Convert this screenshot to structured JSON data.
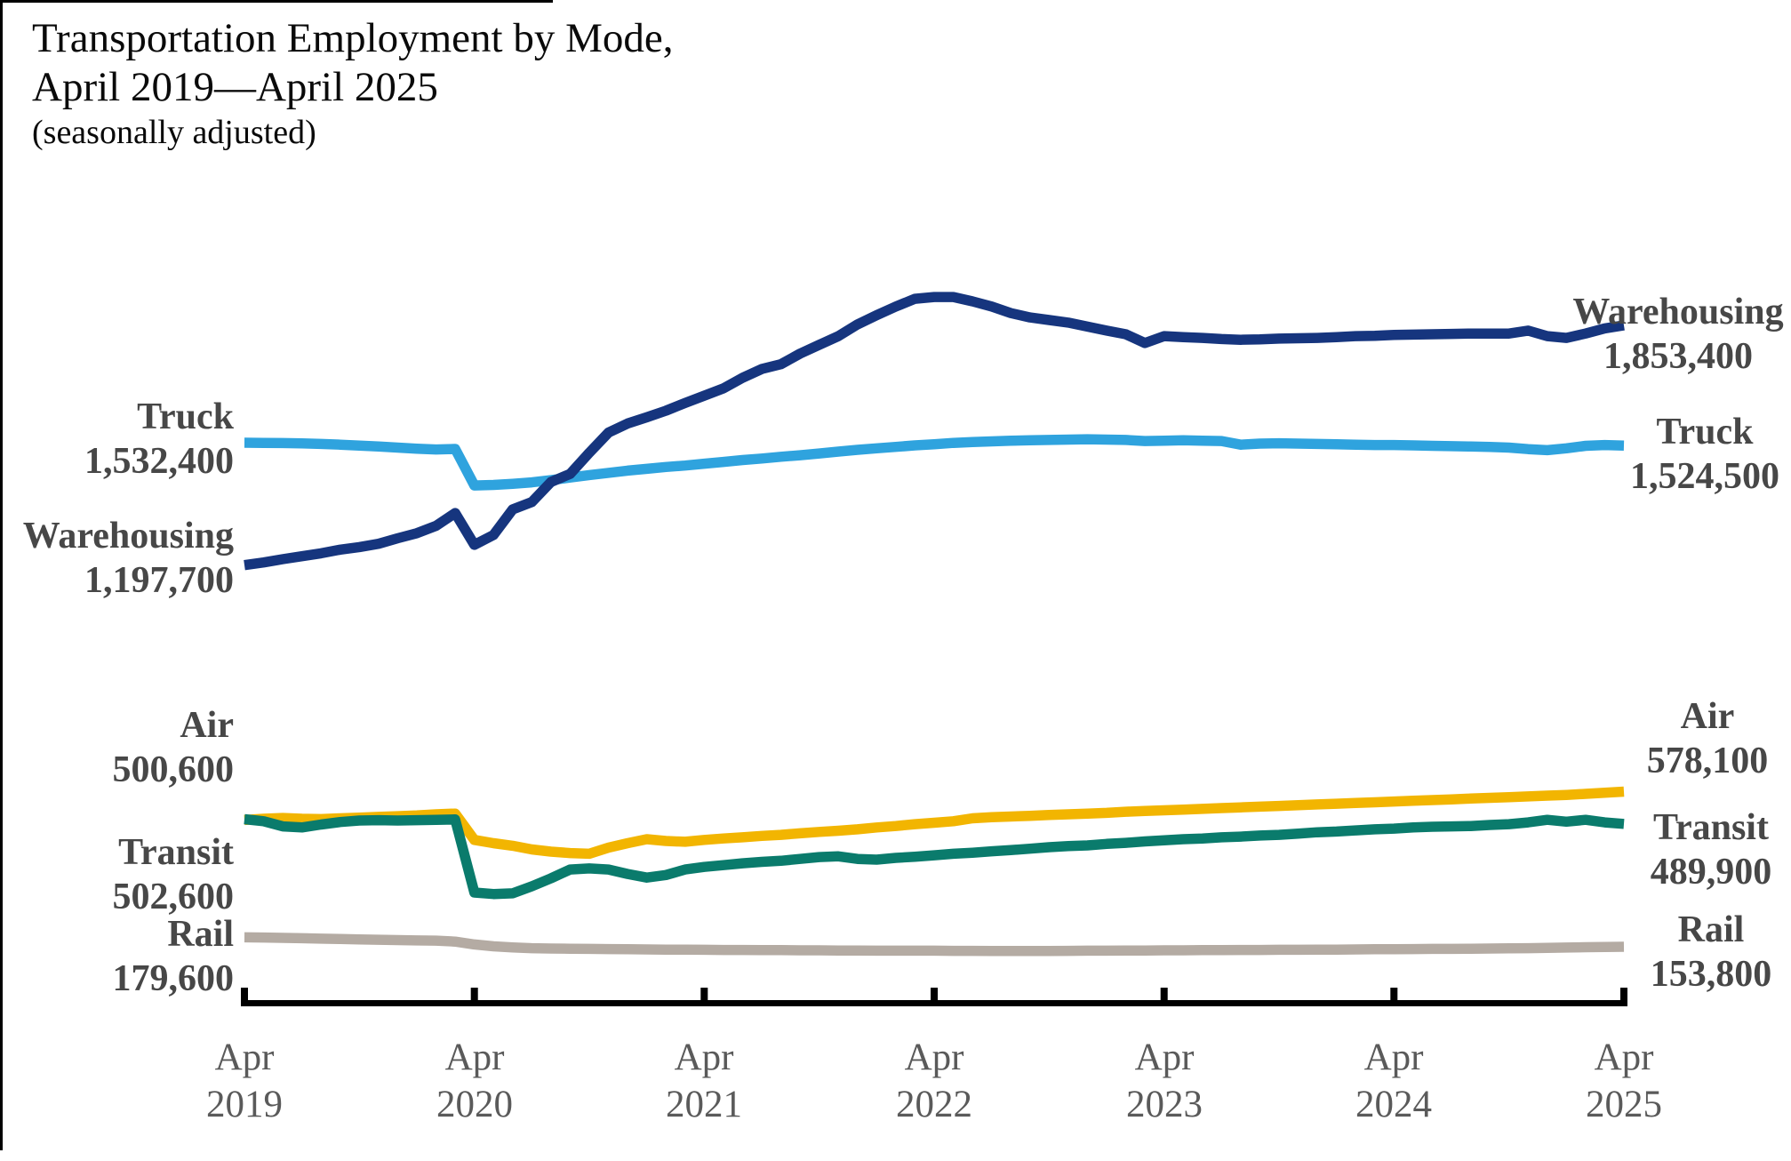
{
  "title": {
    "line1": "Transportation Employment by Mode,",
    "line2": "April 2019—April 2025",
    "line3": "(seasonally adjusted)"
  },
  "colors": {
    "warehousing": "#16357E",
    "truck": "#2FA3DE",
    "air": "#F2B501",
    "transit": "#0A7B6C",
    "rail": "#B4ABA3",
    "axis": "#000000",
    "series_label_text": "#474747",
    "tick_label_text": "#5a5a5a"
  },
  "chart_data": {
    "type": "line",
    "title": "Transportation Employment by Mode, April 2019—April 2025 (seasonally adjusted)",
    "x_unit": "month",
    "x_range": [
      "Apr 2019",
      "Apr 2025"
    ],
    "grid": false,
    "y_axis_visible": false,
    "legend": "direct line labels at both ends",
    "x_tick_labels": [
      {
        "line1": "Apr",
        "line2": "2019"
      },
      {
        "line1": "Apr",
        "line2": "2020"
      },
      {
        "line1": "Apr",
        "line2": "2021"
      },
      {
        "line1": "Apr",
        "line2": "2022"
      },
      {
        "line1": "Apr",
        "line2": "2023"
      },
      {
        "line1": "Apr",
        "line2": "2024"
      },
      {
        "line1": "Apr",
        "line2": "2025"
      }
    ],
    "values_unit": "employees (thousands)",
    "series": [
      {
        "name": "Rail",
        "color_key": "rail",
        "start_label": {
          "name": "Rail",
          "value": "179,600"
        },
        "end_label": {
          "name": "Rail",
          "value": "153,800"
        },
        "values": [
          179.6,
          179,
          178,
          177,
          176,
          175,
          174,
          173,
          172,
          171,
          170.5,
          168,
          160,
          155,
          152,
          150,
          149,
          148.5,
          148,
          147.5,
          147,
          146.5,
          146,
          146,
          145.5,
          145,
          145,
          144.5,
          144.5,
          144,
          144,
          143.5,
          143.5,
          143,
          143,
          143,
          143,
          142.5,
          142.5,
          142,
          142,
          142,
          142,
          142.5,
          143,
          143,
          143.5,
          143.5,
          144,
          144,
          144.5,
          144.5,
          145,
          145,
          145.5,
          145.5,
          146,
          146,
          146.5,
          147,
          147,
          147.5,
          148,
          148,
          148.5,
          149,
          149.5,
          150,
          150.5,
          151.5,
          152.5,
          153,
          153.8
        ]
      },
      {
        "name": "Air",
        "color_key": "air",
        "start_label": {
          "name": "Air",
          "value": "500,600"
        },
        "end_label": {
          "name": "Air",
          "value": "578,100"
        },
        "values": [
          500.6,
          504,
          506,
          504,
          503,
          505,
          507,
          509,
          511,
          513,
          516,
          518,
          446,
          437,
          430,
          420,
          414,
          410,
          408,
          425,
          437,
          448,
          443,
          441,
          446,
          450,
          453,
          457,
          460,
          464,
          468,
          471,
          475,
          480,
          484,
          489,
          493,
          497,
          505,
          508,
          510,
          512,
          514,
          516,
          518,
          520,
          523,
          525,
          527,
          529,
          531,
          533,
          535,
          537,
          539,
          541,
          543,
          545,
          547,
          549,
          551,
          553,
          555,
          557,
          559,
          561,
          563,
          565,
          567,
          569,
          572,
          575,
          578.1
        ]
      },
      {
        "name": "Transit",
        "color_key": "transit",
        "start_label": {
          "name": "Transit",
          "value": "502,600"
        },
        "end_label": {
          "name": "Transit",
          "value": "489,900"
        },
        "values": [
          502.6,
          497,
          483,
          480,
          488,
          495,
          499,
          500,
          499,
          500,
          501,
          502,
          302,
          298,
          300,
          319,
          341,
          365,
          368,
          365,
          353,
          343,
          350,
          365,
          372,
          377,
          382,
          386,
          389,
          394,
          399,
          401,
          394,
          392,
          397,
          400,
          404,
          408,
          411,
          415,
          418,
          422,
          426,
          429,
          431,
          435,
          438,
          442,
          445,
          448,
          450,
          453,
          455,
          458,
          460,
          463,
          467,
          469,
          472,
          475,
          477,
          480,
          482,
          483,
          484,
          487,
          489,
          494,
          501,
          496,
          501,
          494,
          489.9
        ]
      },
      {
        "name": "Truck",
        "color_key": "truck",
        "start_label": {
          "name": "Truck",
          "value": "1,532,400"
        },
        "end_label": {
          "name": "Truck",
          "value": "1,524,500"
        },
        "values": [
          1532.4,
          1532,
          1531.5,
          1530.5,
          1529,
          1527,
          1524.5,
          1522,
          1519,
          1516,
          1514,
          1515.5,
          1415.5,
          1417,
          1420,
          1424,
          1430,
          1437,
          1444,
          1450,
          1456,
          1461,
          1466,
          1470,
          1475,
          1480,
          1485,
          1489,
          1494,
          1498,
          1503,
          1508,
          1513,
          1517,
          1521,
          1525,
          1528,
          1532,
          1534,
          1536,
          1538,
          1539,
          1540,
          1541,
          1542,
          1541,
          1540,
          1537,
          1538,
          1539,
          1538,
          1537,
          1527,
          1530,
          1531,
          1530,
          1529,
          1528,
          1527,
          1526,
          1526,
          1525,
          1524,
          1523,
          1522,
          1521,
          1519,
          1515,
          1512,
          1517,
          1524,
          1526,
          1524.5
        ]
      },
      {
        "name": "Warehousing",
        "color_key": "warehousing",
        "start_label": {
          "name": "Warehousing",
          "value": "1,197,700"
        },
        "end_label": {
          "name": "Warehousing",
          "value": "1,853,400"
        },
        "values": [
          1197.7,
          1205,
          1214,
          1222,
          1230,
          1240,
          1247,
          1256,
          1271,
          1285,
          1305,
          1340,
          1253,
          1280,
          1350,
          1370,
          1425,
          1447,
          1505,
          1560,
          1585,
          1602,
          1620,
          1641,
          1661,
          1681,
          1710,
          1734,
          1747,
          1776,
          1800,
          1824,
          1856,
          1881,
          1905,
          1926,
          1931,
          1931,
          1919,
          1905,
          1887,
          1875,
          1868,
          1861,
          1850,
          1839,
          1829,
          1805,
          1824,
          1821,
          1819,
          1816,
          1814,
          1815,
          1817,
          1818,
          1819,
          1821,
          1824,
          1825,
          1827,
          1828,
          1829,
          1830,
          1831,
          1831,
          1831,
          1839,
          1824,
          1819,
          1831,
          1845,
          1853.4
        ]
      }
    ]
  }
}
